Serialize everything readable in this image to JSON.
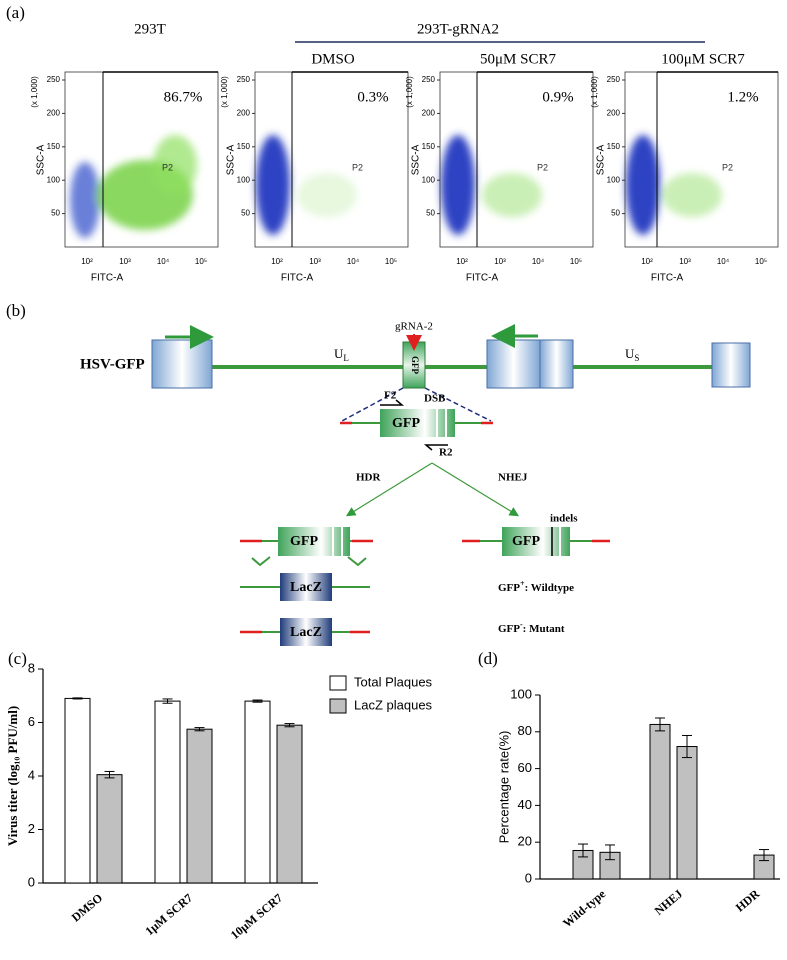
{
  "panel_a": {
    "label": "(a)",
    "left_title": "293T",
    "group_title": "293T-gRNA2",
    "plots": [
      {
        "gate_percent": "86.7%"
      },
      {
        "subtitle": "DMSO",
        "gate_percent": "0.3%"
      },
      {
        "subtitle": "50μM SCR7",
        "gate_percent": "0.9%"
      },
      {
        "subtitle": "100μM SCR7",
        "gate_percent": "1.2%"
      }
    ],
    "gate_name": "P2",
    "y_label": "SSC-A",
    "y_scale_note": "(x 1,000)",
    "y_ticks": [
      50,
      100,
      150,
      200,
      250
    ],
    "x_label": "FITC-A",
    "x_ticks": [
      "10²",
      "10³",
      "10⁴",
      "10⁵"
    ]
  },
  "panel_b": {
    "label": "(b)",
    "genome_name": "HSV-GFP",
    "ul": {
      "main": "U",
      "sub": "L"
    },
    "us": {
      "main": "U",
      "sub": "S"
    },
    "grna": "gRNA-2",
    "gfp": "GFP",
    "forward_primer": "F2",
    "break_site": "DSB",
    "reverse_primer": "R2",
    "hdr": "HDR",
    "nhej": "NHEJ",
    "lacz": "LacZ",
    "indels": "indels",
    "wildtype": {
      "main": "GFP",
      "sup": "+",
      "rest": ": Wildtype"
    },
    "mutant": {
      "main": "GFP",
      "sup": "-",
      "rest": ":  Mutant"
    }
  },
  "chart_data": [
    {
      "type": "bar",
      "panel_label": "(c)",
      "y_label": "Virus titer (log₁₀ PFU/ml)",
      "categories": [
        "DMSO",
        "1μM SCR7",
        "10μM SCR7"
      ],
      "series": [
        {
          "name": "Total Plaques",
          "color": "#ffffff",
          "values": [
            6.9,
            6.8,
            6.8
          ],
          "errors": [
            0.02,
            0.08,
            0.04
          ]
        },
        {
          "name": "LacZ plaques",
          "color": "#c0c0c0",
          "values": [
            4.05,
            5.75,
            5.9
          ],
          "errors": [
            0.12,
            0.06,
            0.06
          ]
        }
      ],
      "ylim": [
        0,
        8
      ],
      "yticks": [
        0,
        2,
        4,
        6,
        8
      ]
    },
    {
      "type": "bar",
      "panel_label": "(d)",
      "y_label": "Percentage rate(%)",
      "categories": [
        "Wild-type",
        "NHEJ",
        "HDR"
      ],
      "series": [
        {
          "color": "#c0c0c0",
          "values": [
            15.5,
            84,
            0
          ],
          "errors": [
            3.5,
            3.5,
            0
          ]
        },
        {
          "color": "#c0c0c0",
          "values": [
            14.5,
            72,
            13
          ],
          "errors": [
            4,
            6,
            3
          ]
        }
      ],
      "ylim": [
        0,
        100
      ],
      "yticks": [
        0,
        20,
        40,
        60,
        80,
        100
      ]
    }
  ]
}
